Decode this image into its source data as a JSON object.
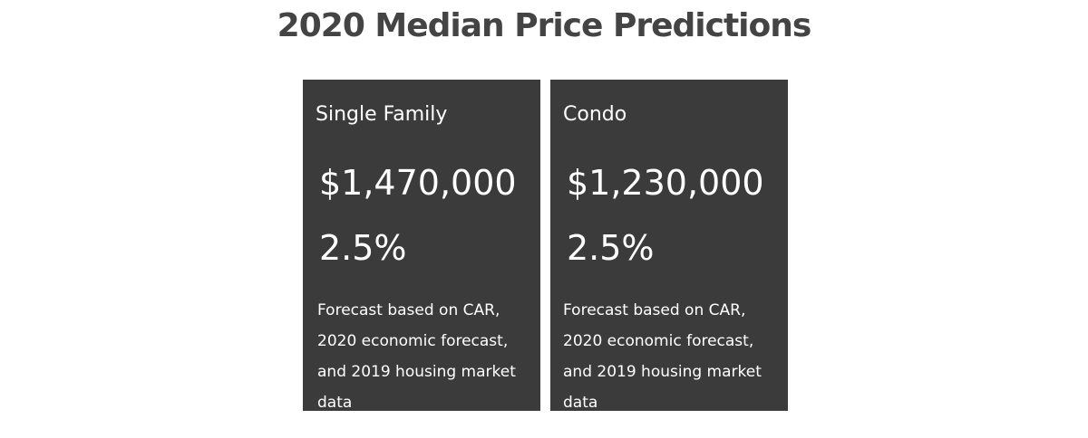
{
  "header": {
    "title": "2020 Median Price Predictions"
  },
  "cards": [
    {
      "name": "Single Family",
      "price": "$1,470,000",
      "change": "2.5%",
      "note": "Forecast based on CAR, 2020 economic forecast, and 2019 housing market data"
    },
    {
      "name": "Condo",
      "price": "$1,230,000",
      "change": "2.5%",
      "note": "Forecast based on CAR, 2020 economic forecast, and 2019 housing market data"
    }
  ]
}
